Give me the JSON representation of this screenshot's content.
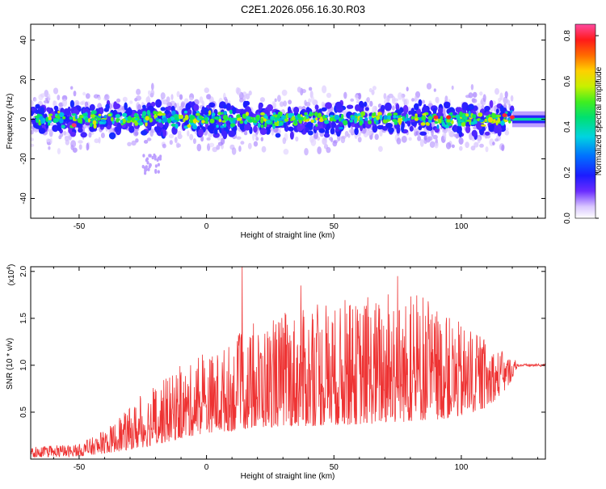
{
  "title": "C2E1.2026.056.16.30.R03",
  "chart_data": [
    {
      "type": "heatmap",
      "title": "C2E1.2026.056.16.30.R03",
      "xlabel": "Height of straight line (km)",
      "ylabel": "Frequency (Hz)",
      "xlim": [
        -69,
        133
      ],
      "ylim": [
        -50,
        48
      ],
      "x_ticks": [
        -50,
        0,
        50,
        100
      ],
      "x_tick_labels": [
        "-50",
        "0",
        "50",
        "100"
      ],
      "y_ticks": [
        -40,
        -20,
        0,
        20,
        40
      ],
      "y_tick_labels": [
        "-40",
        "-20",
        "0",
        "20",
        "40"
      ],
      "colorbar": {
        "label": "Normalized spectral amplitude",
        "range": [
          0.0,
          0.85
        ],
        "ticks": [
          0.0,
          0.2,
          0.4,
          0.6,
          0.8
        ],
        "tick_labels": [
          "0.0",
          "0.2",
          "0.4",
          "0.6",
          "0.8"
        ]
      },
      "ridge": {
        "description": "Signal energy concentrated near 0 Hz across the full height range",
        "center_freq_hz": 0,
        "core_halfwidth_hz": [
          3,
          5
        ],
        "halo_halfwidth_hz": [
          8,
          20
        ],
        "peak_amplitudes": [
          {
            "x": -52,
            "y": -3,
            "amp": 0.82
          },
          {
            "x": 90,
            "y": 1,
            "amp": 0.8
          },
          {
            "x": 95,
            "y": 1,
            "amp": 0.78
          },
          {
            "x": 117,
            "y": 2,
            "amp": 0.8
          },
          {
            "x": 120,
            "y": 1,
            "amp": 0.8
          }
        ],
        "outlier_tail": {
          "x": [
            -25,
            -18
          ],
          "y": [
            -28,
            -18
          ]
        },
        "flat_tail_from_x": 120
      }
    },
    {
      "type": "line",
      "xlabel": "Height of straight line (km)",
      "ylabel": "SNR (10 * v/v)",
      "y_multiplier_label": "(x10",
      "y_multiplier_exp": "4",
      "xlim": [
        -69,
        133
      ],
      "ylim": [
        0,
        2.05
      ],
      "x_ticks": [
        -50,
        0,
        50,
        100
      ],
      "x_tick_labels": [
        "-50",
        "0",
        "50",
        "100"
      ],
      "y_ticks": [
        0.5,
        1.0,
        1.5,
        2.0
      ],
      "y_tick_labels": [
        "0.5",
        "1.0",
        "1.5",
        "2.0"
      ],
      "series": [
        {
          "name": "SNR",
          "color": "#ee3333",
          "envelope": {
            "x": [
              -69,
              -50,
              -40,
              -30,
              -20,
              -10,
              0,
              10,
              20,
              30,
              40,
              50,
              60,
              70,
              80,
              90,
              100,
              110,
              118,
              122,
              133
            ],
            "low": [
              0.02,
              0.03,
              0.06,
              0.1,
              0.15,
              0.22,
              0.28,
              0.3,
              0.33,
              0.35,
              0.35,
              0.36,
              0.37,
              0.38,
              0.4,
              0.42,
              0.45,
              0.55,
              0.75,
              0.98,
              0.98
            ],
            "high": [
              0.12,
              0.16,
              0.3,
              0.55,
              0.8,
              0.95,
              1.1,
              1.25,
              1.4,
              1.55,
              1.6,
              1.62,
              1.68,
              1.75,
              1.7,
              1.6,
              1.45,
              1.25,
              1.12,
              1.02,
              1.02
            ]
          },
          "spikes": [
            {
              "x": 14,
              "y": 2.05
            },
            {
              "x": 75,
              "y": 1.95
            },
            {
              "x": 37,
              "y": 1.85
            },
            {
              "x": 85,
              "y": 1.72
            },
            {
              "x": 55,
              "y": 1.55
            }
          ],
          "tail_level": 1.0
        }
      ]
    }
  ]
}
